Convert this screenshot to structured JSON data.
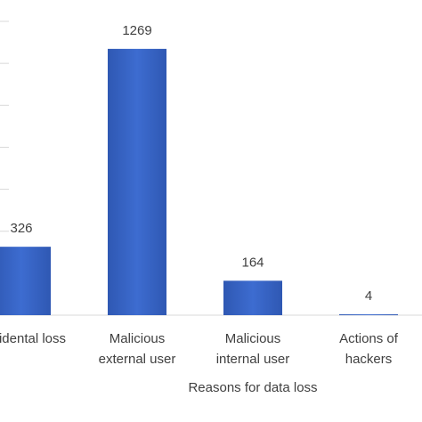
{
  "chart_data": {
    "type": "bar",
    "x_label": "Reasons for data loss",
    "categories": [
      "Accidental loss",
      "Malicious\nexternal user",
      "Malicious\ninternal user",
      "Actions of\nhackers"
    ],
    "values": [
      326,
      1269,
      164,
      4
    ],
    "color": "#3563c1",
    "ylim": [
      0,
      1400
    ],
    "yticks": [
      0,
      200,
      400,
      600,
      800,
      1000,
      1200,
      1400
    ],
    "grid": true
  }
}
